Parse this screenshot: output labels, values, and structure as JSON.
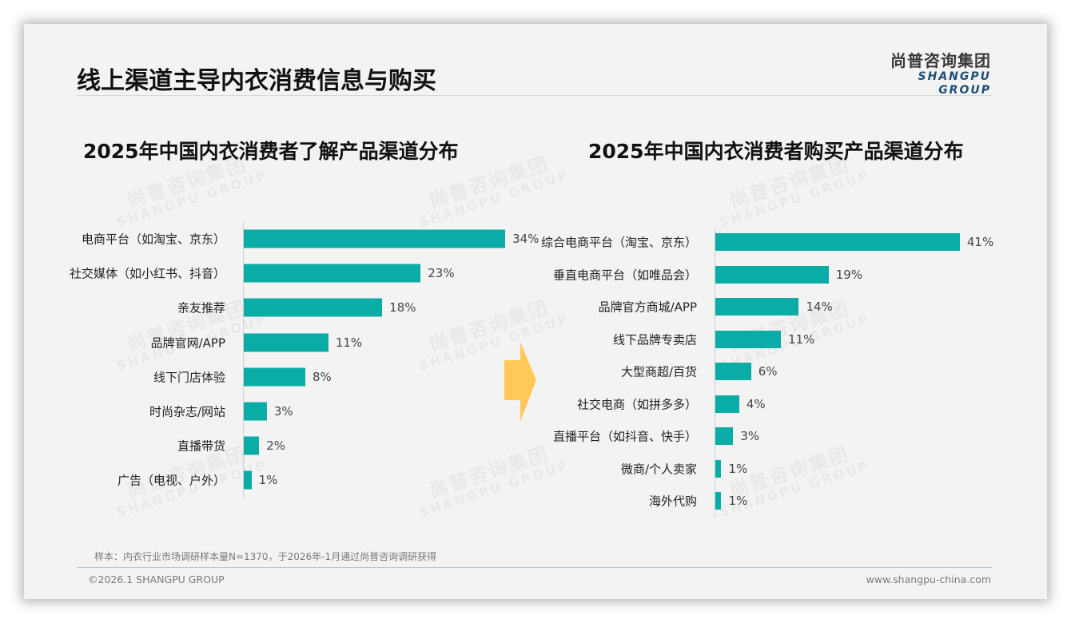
{
  "page": {
    "title": "线上渠道主导内衣消费信息与购买",
    "logo": {
      "cn": "尚普咨询集团",
      "en": "SHANGPU GROUP"
    },
    "note": "样本：内衣行业市场调研样本量N=1370，于2026年-1月通过尚普咨询调研获得",
    "copyright": "©2026.1 SHANGPU GROUP",
    "website": "www.shangpu-china.com",
    "watermark": {
      "cn": "尚普咨询集团",
      "en": "SHANGPU GROUP"
    },
    "arrow_icon": "right-arrow"
  },
  "colors": {
    "bar": "#0aaca6",
    "arrow": "#ffc95a",
    "logo_en": "#1f4e79"
  },
  "chart_data": [
    {
      "type": "bar",
      "orientation": "horizontal",
      "title": "2025年中国内衣消费者了解产品渠道分布",
      "xlabel": "",
      "ylabel": "",
      "categories": [
        "电商平台（如淘宝、京东）",
        "社交媒体（如小红书、抖音）",
        "亲友推荐",
        "品牌官网/APP",
        "线下门店体验",
        "时尚杂志/网站",
        "直播带货",
        "广告（电视、户外）"
      ],
      "values": [
        34,
        23,
        18,
        11,
        8,
        3,
        2,
        1
      ],
      "value_labels": [
        "34%",
        "23%",
        "18%",
        "11%",
        "8%",
        "3%",
        "2%",
        "1%"
      ],
      "unit": "%",
      "grid": false,
      "legend": "none"
    },
    {
      "type": "bar",
      "orientation": "horizontal",
      "title": "2025年中国内衣消费者购买产品渠道分布",
      "xlabel": "",
      "ylabel": "",
      "categories": [
        "综合电商平台（淘宝、京东）",
        "垂直电商平台（如唯品会）",
        "品牌官方商城/APP",
        "线下品牌专卖店",
        "大型商超/百货",
        "社交电商（如拼多多）",
        "直播平台（如抖音、快手）",
        "微商/个人卖家",
        "海外代购"
      ],
      "values": [
        41,
        19,
        14,
        11,
        6,
        4,
        3,
        1,
        1
      ],
      "value_labels": [
        "41%",
        "19%",
        "14%",
        "11%",
        "6%",
        "4%",
        "3%",
        "1%",
        "1%"
      ],
      "unit": "%",
      "grid": false,
      "legend": "none"
    }
  ]
}
